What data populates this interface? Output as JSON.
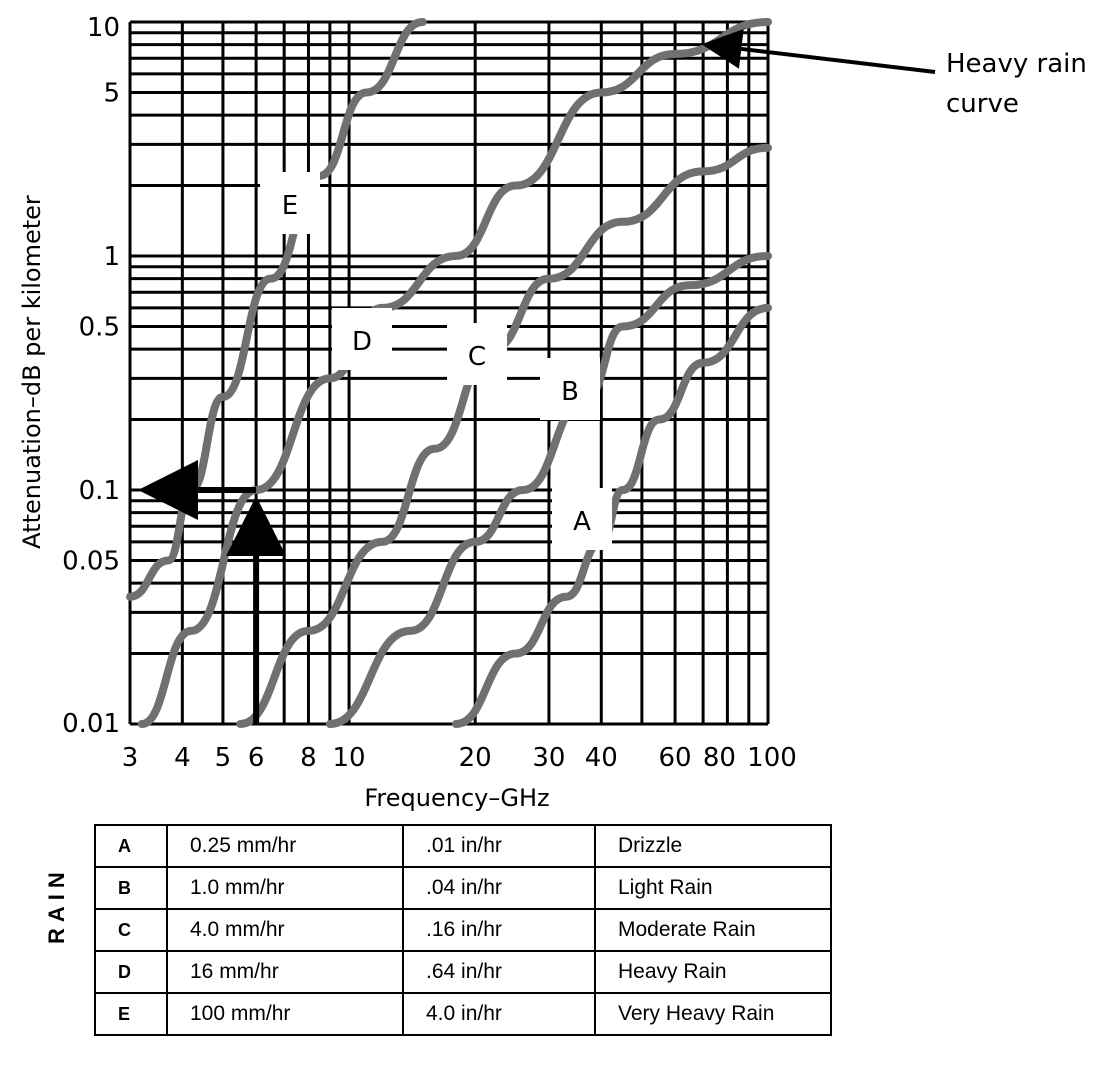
{
  "chart_data": {
    "type": "line",
    "xlabel": "Frequency–GHz",
    "ylabel": "Attenuation–dB per kilometer",
    "x_scale": "log",
    "y_scale": "log",
    "xlim": [
      3,
      100
    ],
    "ylim": [
      0.01,
      10
    ],
    "grid": true,
    "x_ticks": [
      3,
      4,
      5,
      6,
      8,
      10,
      20,
      30,
      40,
      60,
      80,
      100
    ],
    "x_tick_labels": [
      "3",
      "4",
      "5",
      "6",
      "8",
      "10",
      "20",
      "30",
      "40",
      "60",
      "80",
      "100"
    ],
    "y_ticks": [
      0.01,
      0.05,
      0.1,
      0.5,
      1,
      5,
      10
    ],
    "y_tick_labels": [
      "0.01",
      "0.05",
      "0.1",
      "0.5",
      "1",
      "5",
      "10"
    ],
    "series": [
      {
        "name": "A",
        "points": [
          [
            18,
            0.01
          ],
          [
            25,
            0.02
          ],
          [
            33,
            0.035
          ],
          [
            40,
            0.06
          ],
          [
            45,
            0.1
          ],
          [
            55,
            0.2
          ],
          [
            70,
            0.35
          ],
          [
            100,
            0.6
          ]
        ]
      },
      {
        "name": "B",
        "points": [
          [
            9,
            0.01
          ],
          [
            14,
            0.025
          ],
          [
            20,
            0.06
          ],
          [
            26,
            0.1
          ],
          [
            37,
            0.25
          ],
          [
            45,
            0.5
          ],
          [
            65,
            0.75
          ],
          [
            100,
            1.0
          ]
        ]
      },
      {
        "name": "C",
        "points": [
          [
            5.5,
            0.01
          ],
          [
            8,
            0.025
          ],
          [
            12,
            0.06
          ],
          [
            16,
            0.15
          ],
          [
            22,
            0.4
          ],
          [
            30,
            0.8
          ],
          [
            45,
            1.4
          ],
          [
            70,
            2.3
          ],
          [
            100,
            2.9
          ]
        ]
      },
      {
        "name": "D",
        "points": [
          [
            3.2,
            0.01
          ],
          [
            4.2,
            0.025
          ],
          [
            6,
            0.1
          ],
          [
            9,
            0.3
          ],
          [
            12,
            0.6
          ],
          [
            18,
            1.0
          ],
          [
            25,
            2.0
          ],
          [
            40,
            5.0
          ],
          [
            60,
            7.3
          ],
          [
            100,
            10
          ]
        ]
      },
      {
        "name": "E",
        "points": [
          [
            3,
            0.035
          ],
          [
            3.7,
            0.05
          ],
          [
            4.2,
            0.1
          ],
          [
            5,
            0.25
          ],
          [
            6.5,
            0.8
          ],
          [
            8.5,
            2.2
          ],
          [
            11,
            5.0
          ],
          [
            15,
            10
          ]
        ]
      }
    ],
    "annotations": [
      {
        "text": "Heavy rain curve",
        "points_to": [
          65,
          8
        ]
      }
    ],
    "guide_arrow": {
      "x": 6,
      "y": 0.1
    }
  },
  "legend_table": {
    "heading": "RAIN",
    "rows": [
      {
        "code": "A",
        "metric": "0.25 mm/hr",
        "imperial": ".01 in/hr",
        "label": "Drizzle"
      },
      {
        "code": "B",
        "metric": "1.0 mm/hr",
        "imperial": ".04 in/hr",
        "label": "Light Rain"
      },
      {
        "code": "C",
        "metric": "4.0 mm/hr",
        "imperial": ".16 in/hr",
        "label": "Moderate Rain"
      },
      {
        "code": "D",
        "metric": "16 mm/hr",
        "imperial": ".64 in/hr",
        "label": "Heavy Rain"
      },
      {
        "code": "E",
        "metric": "100 mm/hr",
        "imperial": "4.0 in/hr",
        "label": "Very Heavy Rain"
      }
    ]
  },
  "colors": {
    "grid": "#000000",
    "curve": "#707070",
    "background": "#ffffff"
  }
}
